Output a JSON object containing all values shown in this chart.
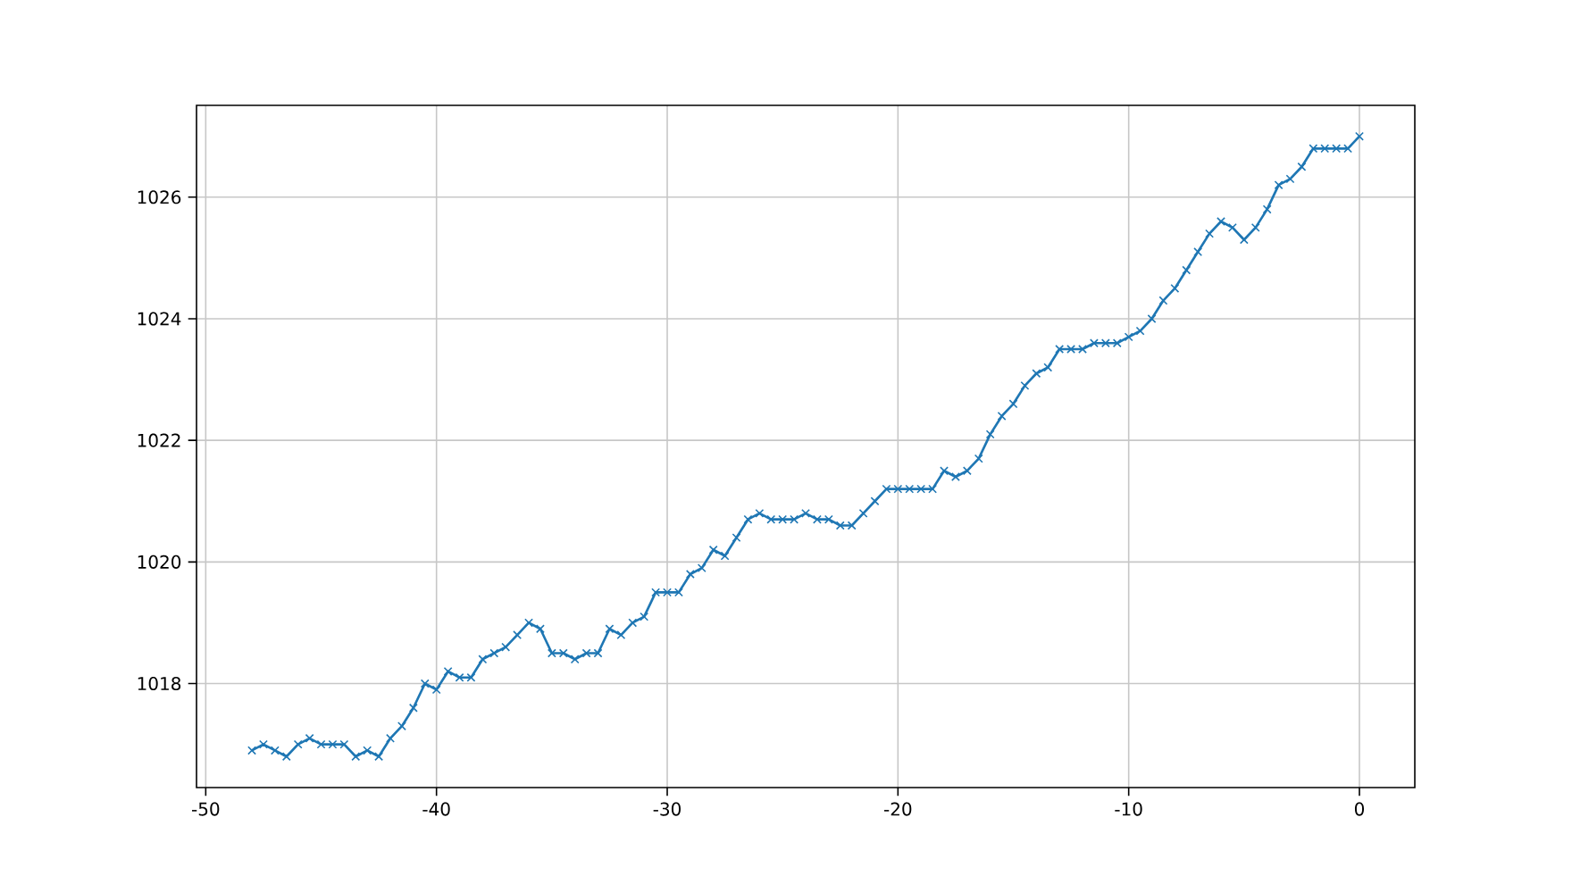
{
  "chart_data": {
    "type": "line",
    "x": [
      -48,
      -47.5,
      -47,
      -46.5,
      -46,
      -45.5,
      -45,
      -44.5,
      -44,
      -43.5,
      -43,
      -42.5,
      -42,
      -41.5,
      -41,
      -40.5,
      -40,
      -39.5,
      -39,
      -38.5,
      -38,
      -37.5,
      -37,
      -36.5,
      -36,
      -35.5,
      -35,
      -34.5,
      -34,
      -33.5,
      -33,
      -32.5,
      -32,
      -31.5,
      -31,
      -30.5,
      -30,
      -29.5,
      -29,
      -28.5,
      -28,
      -27.5,
      -27,
      -26.5,
      -26,
      -25.5,
      -25,
      -24.5,
      -24,
      -23.5,
      -23,
      -22.5,
      -22,
      -21.5,
      -21,
      -20.5,
      -20,
      -19.5,
      -19,
      -18.5,
      -18,
      -17.5,
      -17,
      -16.5,
      -16,
      -15.5,
      -15,
      -14.5,
      -14,
      -13.5,
      -13,
      -12.5,
      -12,
      -11.5,
      -11,
      -10.5,
      -10,
      -9.5,
      -9,
      -8.5,
      -8,
      -7.5,
      -7,
      -6.5,
      -6,
      -5.5,
      -5,
      -4.5,
      -4,
      -3.5,
      -3,
      -2.5,
      -2,
      -1.5,
      -1,
      -0.5,
      0
    ],
    "series": [
      {
        "color": "#1f77b4",
        "values": [
          1016.9,
          1017.0,
          1016.9,
          1016.8,
          1017.0,
          1017.1,
          1017.0,
          1017.0,
          1017.0,
          1016.8,
          1016.9,
          1016.8,
          1017.1,
          1017.3,
          1017.6,
          1018.0,
          1017.9,
          1018.2,
          1018.1,
          1018.1,
          1018.4,
          1018.5,
          1018.6,
          1018.8,
          1019.0,
          1018.9,
          1018.5,
          1018.5,
          1018.4,
          1018.5,
          1018.5,
          1018.9,
          1018.8,
          1019.0,
          1019.1,
          1019.5,
          1019.5,
          1019.5,
          1019.8,
          1019.9,
          1020.2,
          1020.1,
          1020.4,
          1020.7,
          1020.8,
          1020.7,
          1020.7,
          1020.7,
          1020.8,
          1020.7,
          1020.7,
          1020.6,
          1020.6,
          1020.8,
          1021.0,
          1021.2,
          1021.2,
          1021.2,
          1021.2,
          1021.2,
          1021.5,
          1021.4,
          1021.5,
          1021.7,
          1022.1,
          1022.4,
          1022.6,
          1022.9,
          1023.1,
          1023.2,
          1023.5,
          1023.5,
          1023.5,
          1023.6,
          1023.6,
          1023.6,
          1023.7,
          1023.8,
          1024.0,
          1024.3,
          1024.5,
          1024.8,
          1025.1,
          1025.4,
          1025.6,
          1025.5,
          1025.3,
          1025.5,
          1025.8,
          1026.2,
          1026.3,
          1026.5,
          1026.8,
          1026.8,
          1026.8,
          1026.8,
          1027.0
        ]
      }
    ],
    "xlim": [
      -50.4,
      2.4
    ],
    "ylim": [
      1016.29,
      1027.51
    ],
    "xticks": [
      -50,
      -40,
      -30,
      -20,
      -10,
      0
    ],
    "yticks": [
      1018,
      1020,
      1022,
      1024,
      1026
    ],
    "grid": true,
    "marker": "cross",
    "line_style": "solid",
    "legend": false
  }
}
